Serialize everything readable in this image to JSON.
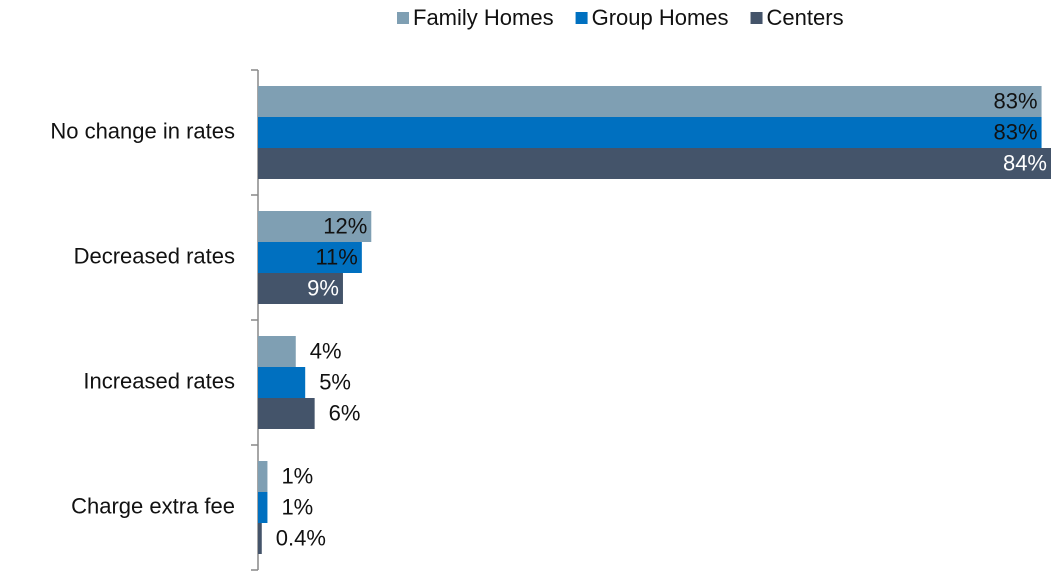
{
  "chart_data": {
    "type": "bar",
    "orientation": "horizontal",
    "categories": [
      "No change in rates",
      "Decreased rates",
      "Increased rates",
      "Charge extra fee"
    ],
    "series": [
      {
        "name": "Family Homes",
        "color": "#7f9fb3",
        "values": [
          83,
          12,
          4,
          1
        ],
        "value_labels": [
          "83%",
          "12%",
          "4%",
          "1%"
        ]
      },
      {
        "name": "Group Homes",
        "color": "#0070c0",
        "values": [
          83,
          11,
          5,
          1
        ],
        "value_labels": [
          "83%",
          "11%",
          "5%",
          "1%"
        ]
      },
      {
        "name": "Centers",
        "color": "#44546a",
        "values": [
          84,
          9,
          6,
          0.4
        ],
        "value_labels": [
          "84%",
          "9%",
          "6%",
          "0.4%"
        ]
      }
    ],
    "legend": "top"
  }
}
